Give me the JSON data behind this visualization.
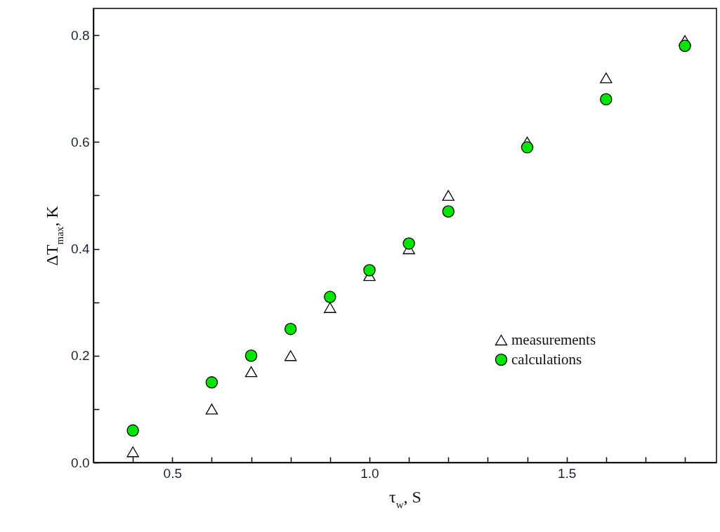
{
  "chart_data": {
    "type": "scatter",
    "xlabel": "τ$_{w}$, S",
    "ylabel": "ΔT$_{max}$, K",
    "x": [
      0.4,
      0.6,
      0.7,
      0.8,
      0.9,
      1.0,
      1.1,
      1.2,
      1.4,
      1.6,
      1.8
    ],
    "series": [
      {
        "name": "measurements",
        "color": "#000000",
        "marker": "triangle",
        "values": [
          0.02,
          0.1,
          0.17,
          0.2,
          0.29,
          0.35,
          0.4,
          0.5,
          0.6,
          0.72,
          0.79
        ]
      },
      {
        "name": "calculations",
        "color": "#00e600",
        "marker": "circle",
        "values": [
          0.06,
          0.15,
          0.2,
          0.25,
          0.31,
          0.36,
          0.41,
          0.47,
          0.59,
          0.68,
          0.78
        ]
      }
    ],
    "xlim": [
      0.3,
      1.88
    ],
    "ylim": [
      0,
      0.85
    ],
    "xticks": [
      {
        "value": 0.4,
        "label": null
      },
      {
        "value": 0.5,
        "label": "0.5"
      },
      {
        "value": 0.6,
        "label": null
      },
      {
        "value": 0.7,
        "label": null
      },
      {
        "value": 0.8,
        "label": null
      },
      {
        "value": 0.9,
        "label": null
      },
      {
        "value": 1.0,
        "label": "1.0"
      },
      {
        "value": 1.1,
        "label": null
      },
      {
        "value": 1.2,
        "label": null
      },
      {
        "value": 1.3,
        "label": null
      },
      {
        "value": 1.4,
        "label": null
      },
      {
        "value": 1.5,
        "label": "1.5"
      },
      {
        "value": 1.6,
        "label": null
      },
      {
        "value": 1.7,
        "label": null
      },
      {
        "value": 1.8,
        "label": null
      }
    ],
    "yticks": [
      {
        "value": 0,
        "label": "0.0"
      },
      {
        "value": 0.1,
        "label": null
      },
      {
        "value": 0.2,
        "label": "0.2"
      },
      {
        "value": 0.3,
        "label": null
      },
      {
        "value": 0.4,
        "label": "0.4"
      },
      {
        "value": 0.5,
        "label": null
      },
      {
        "value": 0.6,
        "label": "0.6"
      },
      {
        "value": 0.7,
        "label": null
      },
      {
        "value": 0.8,
        "label": "0.8"
      }
    ],
    "grid": false,
    "legend": "bottom right"
  }
}
